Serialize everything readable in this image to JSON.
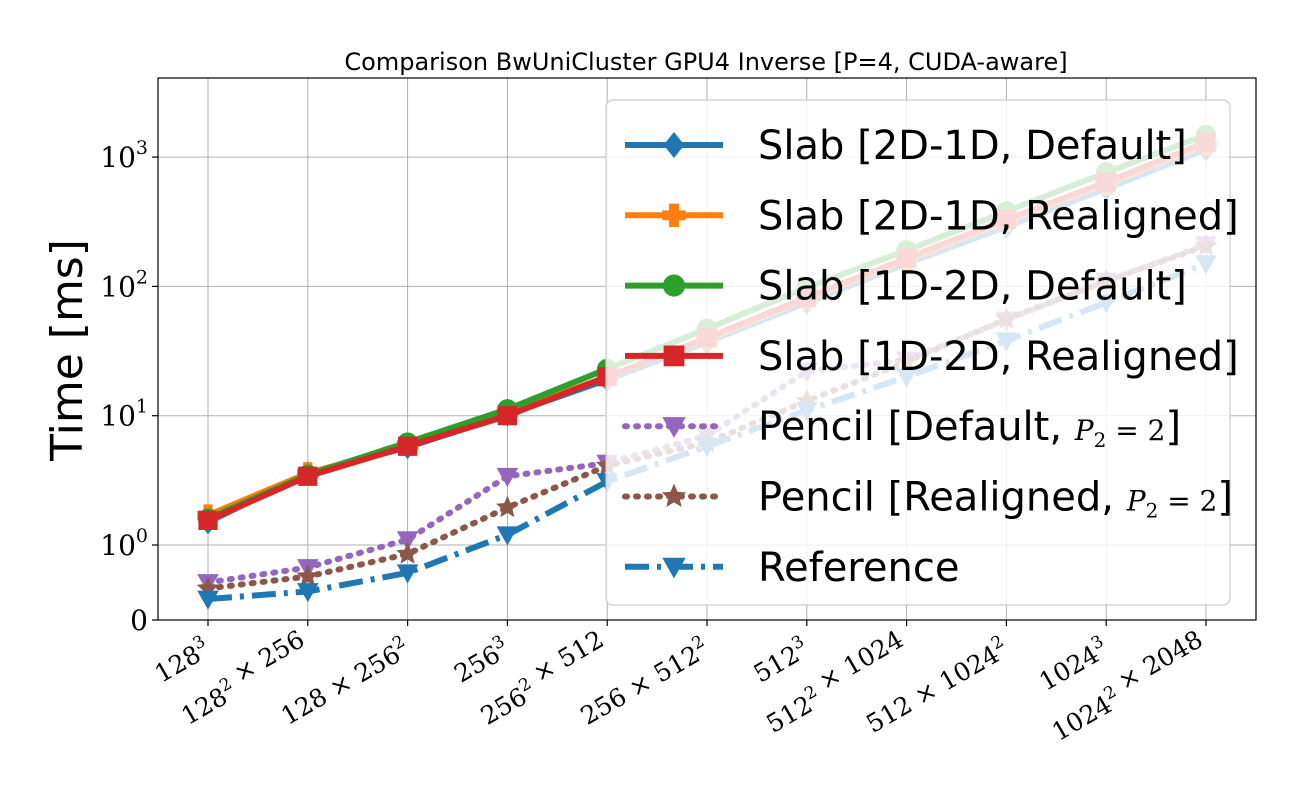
{
  "chart_data": {
    "type": "line",
    "title": "Comparison BwUniCluster GPU4 Inverse [P=4, CUDA-aware]",
    "xlabel": "",
    "ylabel": "Time [ms]",
    "yscale": "symlog",
    "ylim": [
      0,
      2000
    ],
    "grid": true,
    "legend_position": "right",
    "categories": [
      "128^3",
      "128^2 × 256",
      "128 × 256^2",
      "256^3",
      "256^2 × 512",
      "256 × 512^2",
      "512^3",
      "512^2 × 1024",
      "512 × 1024^2",
      "1024^3",
      "1024^2 × 2048"
    ],
    "ytick_labels": [
      {
        "base": "0",
        "exp": ""
      },
      {
        "base": "10",
        "exp": "0"
      },
      {
        "base": "10",
        "exp": "1"
      },
      {
        "base": "10",
        "exp": "2"
      },
      {
        "base": "10",
        "exp": "3"
      }
    ],
    "series": [
      {
        "name": "Slab [2D-1D, Default]",
        "color": "#1f77b4",
        "marker": "diamond",
        "dash": "solid",
        "values": [
          1.5,
          3.6,
          5.7,
          10.2,
          19,
          37,
          75,
          150,
          290,
          570,
          1150
        ]
      },
      {
        "name": "Slab [2D-1D, Realigned]",
        "color": "#ff7f0e",
        "marker": "plus-filled",
        "dash": "solid",
        "values": [
          1.7,
          3.6,
          5.9,
          10.5,
          20,
          39,
          80,
          160,
          320,
          620,
          1250
        ]
      },
      {
        "name": "Slab [1D-2D, Default]",
        "color": "#2ca02c",
        "marker": "circle",
        "dash": "solid",
        "values": [
          1.6,
          3.5,
          6.2,
          11.2,
          23,
          47,
          98,
          190,
          380,
          760,
          1480
        ]
      },
      {
        "name": "Slab [1D-2D, Realigned]",
        "color": "#d62728",
        "marker": "square",
        "dash": "solid",
        "values": [
          1.55,
          3.4,
          5.8,
          10,
          20,
          40,
          82,
          165,
          330,
          640,
          1300
        ]
      },
      {
        "name": "Pencil [Default, P_2 = 2]",
        "color": "#9467bd",
        "marker": "triangle-down",
        "dash": "dotted",
        "values": [
          0.5,
          0.7,
          1.1,
          3.4,
          4.3,
          7,
          22,
          27,
          55,
          110,
          210
        ]
      },
      {
        "name": "Pencil [Realigned, P_2 = 2]",
        "color": "#8c564b",
        "marker": "star",
        "dash": "dotted",
        "values": [
          0.42,
          0.58,
          0.88,
          1.95,
          4.1,
          6.2,
          13,
          26,
          56,
          110,
          205
        ]
      },
      {
        "name": "Reference",
        "color": "#1f77b4",
        "marker": "triangle-down",
        "dash": "dashdot",
        "values": [
          0.28,
          0.38,
          0.63,
          1.2,
          3.1,
          5.8,
          11,
          20,
          38,
          75,
          150
        ]
      }
    ]
  }
}
